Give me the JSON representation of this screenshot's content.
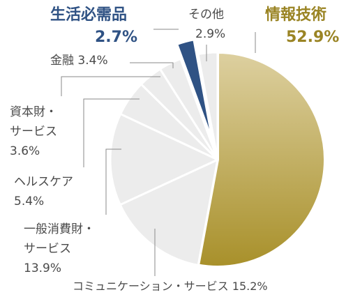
{
  "chart_data": {
    "type": "pie",
    "slices": [
      {
        "label": "情報技術",
        "value": 52.9,
        "value_text": "52.9%",
        "color": "#b8a13c",
        "highlight": true
      },
      {
        "label": "コミュニケーション・サービス",
        "value": 15.2,
        "value_text": "15.2%",
        "color": "#ececec"
      },
      {
        "label": "一般消費財・サービス",
        "value": 13.9,
        "value_text": "13.9%",
        "color": "#ececec"
      },
      {
        "label": "ヘルスケア",
        "value": 5.4,
        "value_text": "5.4%",
        "color": "#ececec"
      },
      {
        "label": "資本財・サービス",
        "value": 3.6,
        "value_text": "3.6%",
        "color": "#ececec"
      },
      {
        "label": "金融",
        "value": 3.4,
        "value_text": "3.4%",
        "color": "#ececec"
      },
      {
        "label": "生活必需品",
        "value": 2.7,
        "value_text": "2.7%",
        "color": "#2f5284",
        "highlight": true,
        "exploded": true
      },
      {
        "label": "その他",
        "value": 2.9,
        "value_text": "2.9%",
        "color": "#ececec"
      }
    ],
    "colors": {
      "it_label": "#9a8424",
      "staples_label": "#2f5284",
      "other_text": "#4a4a4a",
      "slice_gradient_light": "#ddd0a0",
      "slice_gradient_dark": "#a8902a"
    },
    "labels": {
      "it_name": "情報技術",
      "it_value": "52.9%",
      "staples_name": "生活必需品",
      "staples_value": "2.7%",
      "other_name": "その他",
      "other_value": "2.9%",
      "finance": "金融 3.4%",
      "capital_line1": "資本財・",
      "capital_line2": "サービス",
      "capital_line3": "3.6%",
      "health_line1": "ヘルスケア",
      "health_line2": "5.4%",
      "consumer_line1": "一般消費財・",
      "consumer_line2": "サービス",
      "consumer_line3": "13.9%",
      "comm": "コミュニケーション・サービス 15.2%"
    }
  }
}
